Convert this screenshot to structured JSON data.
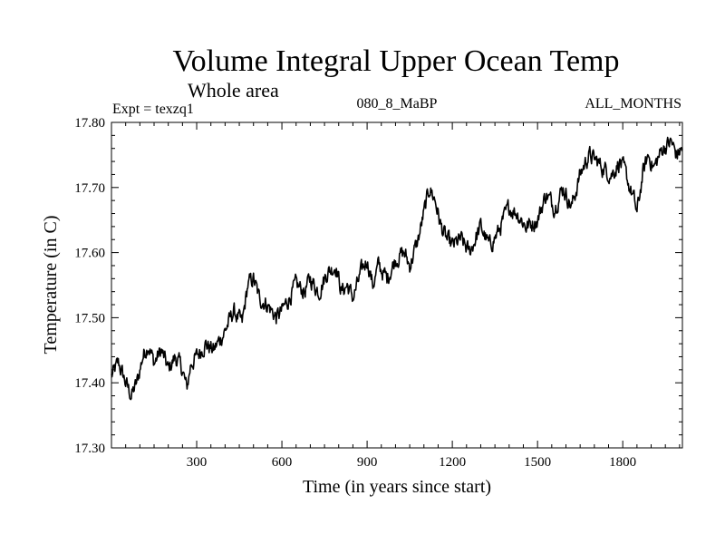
{
  "chart_data": {
    "type": "line",
    "title": "Volume Integral Upper Ocean Temp",
    "subtitle": "Whole area",
    "header_left": "Expt = texzq1",
    "header_center": "080_8_MaBP",
    "header_right": "ALL_MONTHS",
    "xlabel": "Time (in years since start)",
    "ylabel": "Temperature (in C)",
    "xlim": [
      0,
      2010
    ],
    "ylim": [
      17.3,
      17.8
    ],
    "xticks": [
      300,
      600,
      900,
      1200,
      1500,
      1800
    ],
    "xtick_labels": [
      "300",
      "600",
      "900",
      "1200",
      "1500",
      "1800"
    ],
    "yticks": [
      17.3,
      17.4,
      17.5,
      17.6,
      17.7,
      17.8
    ],
    "ytick_labels": [
      "17.30",
      "17.40",
      "17.50",
      "17.60",
      "17.70",
      "17.80"
    ],
    "grid": false,
    "series": [
      {
        "name": "Volume integral upper ocean temperature",
        "x": [
          0,
          25,
          50,
          70,
          90,
          110,
          130,
          150,
          175,
          200,
          225,
          250,
          265,
          280,
          300,
          330,
          360,
          400,
          430,
          460,
          480,
          500,
          520,
          550,
          580,
          600,
          625,
          650,
          680,
          700,
          730,
          760,
          790,
          810,
          830,
          850,
          880,
          900,
          920,
          940,
          970,
          1000,
          1030,
          1050,
          1080,
          1100,
          1120,
          1140,
          1160,
          1180,
          1200,
          1230,
          1260,
          1280,
          1300,
          1330,
          1360,
          1400,
          1430,
          1460,
          1500,
          1530,
          1560,
          1590,
          1620,
          1650,
          1680,
          1710,
          1730,
          1760,
          1790,
          1810,
          1840,
          1850,
          1870,
          1890,
          1910,
          1940,
          1970,
          1990,
          2010
        ],
        "values": [
          17.41,
          17.43,
          17.4,
          17.38,
          17.4,
          17.44,
          17.46,
          17.43,
          17.45,
          17.42,
          17.44,
          17.42,
          17.39,
          17.43,
          17.44,
          17.46,
          17.45,
          17.48,
          17.51,
          17.49,
          17.55,
          17.56,
          17.53,
          17.52,
          17.5,
          17.51,
          17.53,
          17.55,
          17.54,
          17.56,
          17.54,
          17.57,
          17.58,
          17.54,
          17.55,
          17.53,
          17.57,
          17.59,
          17.55,
          17.58,
          17.56,
          17.59,
          17.6,
          17.58,
          17.62,
          17.66,
          17.7,
          17.68,
          17.64,
          17.62,
          17.61,
          17.62,
          17.6,
          17.62,
          17.64,
          17.61,
          17.63,
          17.67,
          17.66,
          17.64,
          17.65,
          17.69,
          17.67,
          17.7,
          17.67,
          17.72,
          17.75,
          17.74,
          17.73,
          17.72,
          17.74,
          17.72,
          17.68,
          17.66,
          17.72,
          17.75,
          17.73,
          17.76,
          17.77,
          17.75,
          17.76
        ]
      }
    ]
  }
}
